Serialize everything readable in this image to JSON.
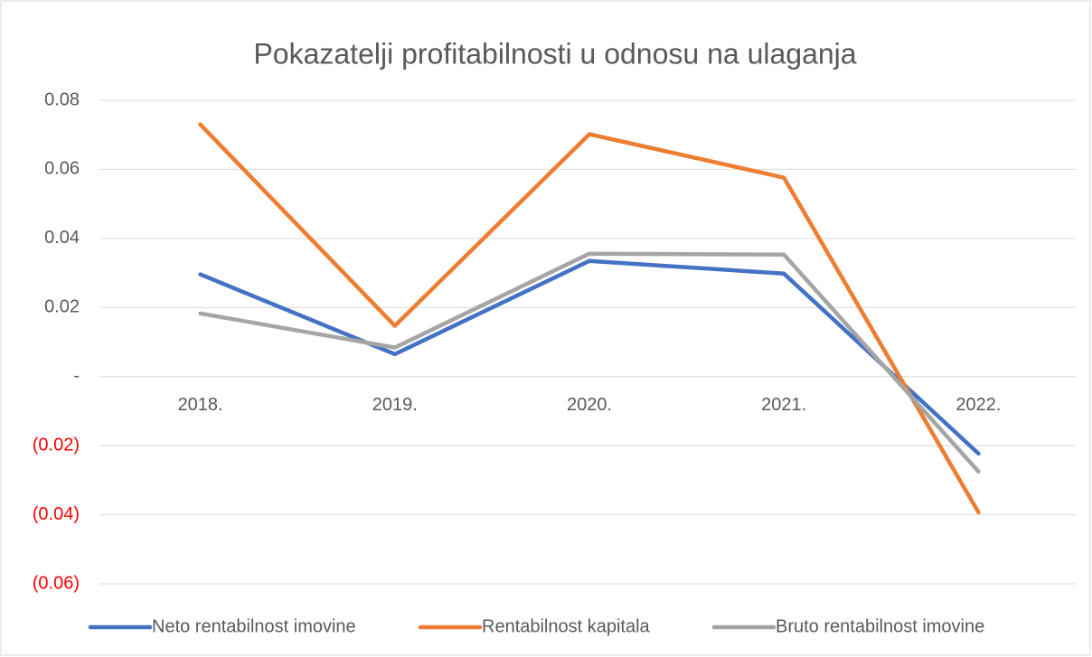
{
  "chart_data": {
    "type": "line",
    "title": "Pokazatelji profitabilnosti u odnosu na ulaganja",
    "categories": [
      "2018.",
      "2019.",
      "2020.",
      "2021.",
      "2022."
    ],
    "series": [
      {
        "name": "Neto rentabilnost imovine",
        "color": "#4472c4",
        "values": [
          0.0296,
          0.0065,
          0.0335,
          0.0298,
          -0.0223
        ]
      },
      {
        "name": "Rentabilnost kapitala",
        "color": "#ed7d31",
        "values": [
          0.073,
          0.0147,
          0.0702,
          0.0576,
          -0.0393
        ]
      },
      {
        "name": "Bruto rentabilnost imovine",
        "color": "#a5a5a5",
        "values": [
          0.0183,
          0.0084,
          0.0356,
          0.0353,
          -0.0275
        ]
      }
    ],
    "ylim": [
      -0.06,
      0.08
    ],
    "yticks": [
      {
        "value": -0.06,
        "label": "(0.06)"
      },
      {
        "value": -0.04,
        "label": "(0.04)"
      },
      {
        "value": -0.02,
        "label": "(0.02)"
      },
      {
        "value": 0,
        "label": "-"
      },
      0.02,
      0.04,
      0.06,
      0.08
    ],
    "negative_tick_color": "#ff0000",
    "grid": true,
    "legend": "bottom"
  }
}
